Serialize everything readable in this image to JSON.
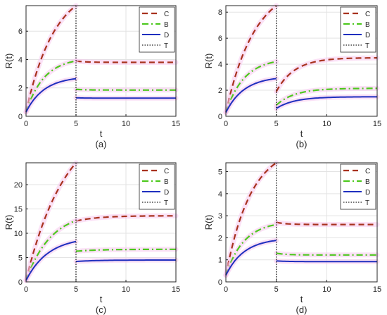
{
  "legend": {
    "C": "C",
    "B": "B",
    "D": "D",
    "T": "T"
  },
  "colors": {
    "C": "#a8321e",
    "B": "#4dc81e",
    "D": "#1f2fbf",
    "T": "#222222",
    "glow": "#f7c8ee"
  },
  "chart_data": [
    {
      "type": "line",
      "panel_label": "(a)",
      "xlabel": "t",
      "ylabel": "R(t)",
      "xlim": [
        0,
        15
      ],
      "ylim": [
        0,
        7.8
      ],
      "xticks": [
        0,
        5,
        10,
        15
      ],
      "yticks": [
        0,
        2,
        4,
        6
      ],
      "legend_position": "top-right",
      "grid": true,
      "T": 5,
      "series": [
        {
          "name": "C",
          "style": "dashed",
          "p1": {
            "start": 0.3,
            "end": 7.8,
            "k": 0.35
          },
          "p2": {
            "start": 3.9,
            "end": 3.8,
            "k": 1
          }
        },
        {
          "name": "B",
          "style": "dashdot",
          "p1": {
            "start": 0.3,
            "end": 3.9,
            "k": 0.55
          },
          "p2": {
            "start": 1.9,
            "end": 1.85,
            "k": 1
          }
        },
        {
          "name": "D",
          "style": "solid",
          "p1": {
            "start": 0.3,
            "end": 2.65,
            "k": 0.55
          },
          "p2": {
            "start": 1.3,
            "end": 1.28,
            "k": 1
          }
        }
      ]
    },
    {
      "type": "line",
      "panel_label": "(b)",
      "xlabel": "t",
      "ylabel": "R(t)",
      "xlim": [
        0,
        15
      ],
      "ylim": [
        0,
        8.5
      ],
      "xticks": [
        0,
        5,
        10,
        15
      ],
      "yticks": [
        0,
        2,
        4,
        6,
        8
      ],
      "legend_position": "top-right",
      "grid": true,
      "T": 5,
      "series": [
        {
          "name": "C",
          "style": "dashed",
          "p1": {
            "start": 0.3,
            "end": 8.5,
            "k": 0.35
          },
          "p2": {
            "start": 1.9,
            "end": 4.5,
            "k": 0.55
          }
        },
        {
          "name": "B",
          "style": "dashdot",
          "p1": {
            "start": 0.3,
            "end": 4.2,
            "k": 0.55
          },
          "p2": {
            "start": 0.85,
            "end": 2.15,
            "k": 0.55
          }
        },
        {
          "name": "D",
          "style": "solid",
          "p1": {
            "start": 0.3,
            "end": 2.9,
            "k": 0.55
          },
          "p2": {
            "start": 0.6,
            "end": 1.5,
            "k": 0.55
          }
        }
      ]
    },
    {
      "type": "line",
      "panel_label": "(c)",
      "xlabel": "t",
      "ylabel": "R(t)",
      "xlim": [
        0,
        15
      ],
      "ylim": [
        0,
        24.5
      ],
      "xticks": [
        0,
        5,
        10,
        15
      ],
      "yticks": [
        0,
        5,
        10,
        15,
        20
      ],
      "legend_position": "top-right",
      "grid": true,
      "T": 5,
      "series": [
        {
          "name": "C",
          "style": "dashed",
          "p1": {
            "start": 0.3,
            "end": 24.5,
            "k": 0.25
          },
          "p2": {
            "start": 12.5,
            "end": 13.6,
            "k": 0.45
          }
        },
        {
          "name": "B",
          "style": "dashdot",
          "p1": {
            "start": 0.3,
            "end": 12.6,
            "k": 0.4
          },
          "p2": {
            "start": 6.3,
            "end": 6.7,
            "k": 0.45
          }
        },
        {
          "name": "D",
          "style": "solid",
          "p1": {
            "start": 0.3,
            "end": 8.3,
            "k": 0.45
          },
          "p2": {
            "start": 4.2,
            "end": 4.5,
            "k": 0.45
          }
        }
      ]
    },
    {
      "type": "line",
      "panel_label": "(d)",
      "xlabel": "t",
      "ylabel": "R(t)",
      "xlim": [
        0,
        15
      ],
      "ylim": [
        0,
        5.4
      ],
      "xticks": [
        0,
        5,
        10,
        15
      ],
      "yticks": [
        0,
        1,
        2,
        3,
        4,
        5
      ],
      "legend_position": "top-right",
      "grid": true,
      "T": 5,
      "series": [
        {
          "name": "C",
          "style": "dashed",
          "p1": {
            "start": 0.3,
            "end": 5.4,
            "k": 0.4
          },
          "p2": {
            "start": 2.7,
            "end": 2.6,
            "k": 1
          }
        },
        {
          "name": "B",
          "style": "dashdot",
          "p1": {
            "start": 0.3,
            "end": 2.6,
            "k": 0.55
          },
          "p2": {
            "start": 1.3,
            "end": 1.22,
            "k": 1
          }
        },
        {
          "name": "D",
          "style": "solid",
          "p1": {
            "start": 0.3,
            "end": 1.88,
            "k": 0.55
          },
          "p2": {
            "start": 0.95,
            "end": 0.92,
            "k": 1
          }
        }
      ]
    }
  ]
}
